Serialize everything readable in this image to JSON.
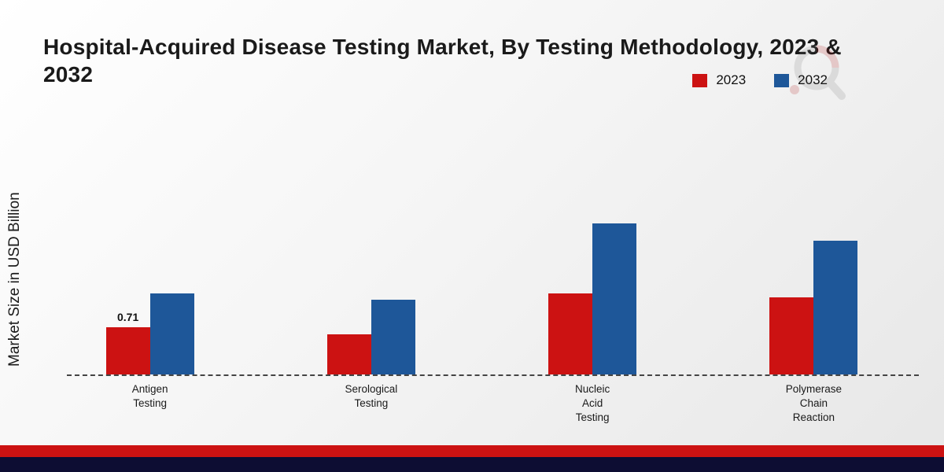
{
  "title": "Hospital-Acquired Disease Testing Market, By Testing Methodology, 2023 & 2032",
  "ylabel": "Market Size in USD Billion",
  "legend": [
    {
      "label": "2023",
      "color": "#cc1212"
    },
    {
      "label": "2032",
      "color": "#1e5799"
    }
  ],
  "brand": {
    "stripe_red": "#cc1212",
    "stripe_navy": "#0d0d33"
  },
  "chart_data": {
    "type": "bar",
    "categories": [
      "Antigen\nTesting",
      "Serological\nTesting",
      "Nucleic\nAcid\nTesting",
      "Polymerase\nChain\nReaction"
    ],
    "series": [
      {
        "name": "2023",
        "color": "#cc1212",
        "values": [
          0.71,
          0.6,
          1.22,
          1.15
        ],
        "labels": [
          "0.71",
          "",
          "",
          ""
        ]
      },
      {
        "name": "2032",
        "color": "#1e5799",
        "values": [
          1.22,
          1.12,
          2.26,
          2.0
        ],
        "labels": [
          "",
          "",
          "",
          ""
        ]
      }
    ],
    "title": "Hospital-Acquired Disease Testing Market, By Testing Methodology, 2023 & 2032",
    "xlabel": "",
    "ylabel": "Market Size in USD Billion",
    "ylim": [
      0,
      2.5
    ],
    "grid": false,
    "legend_position": "top-right",
    "baseline_style": "dashed"
  }
}
